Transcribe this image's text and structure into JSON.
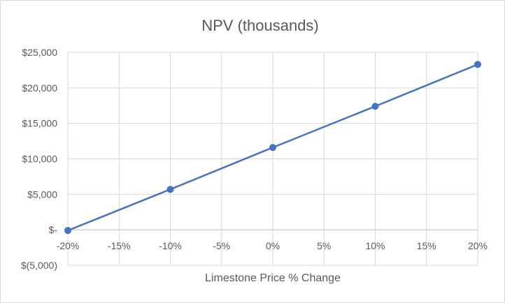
{
  "chart_data": {
    "type": "line",
    "title": "NPV (thousands)",
    "xlabel": "Limestone Price % Change",
    "ylabel": "",
    "x": [
      -20,
      -10,
      0,
      10,
      20
    ],
    "x_tick_labels": [
      "-20%",
      "-15%",
      "-10%",
      "-5%",
      "0%",
      "5%",
      "10%",
      "15%",
      "20%"
    ],
    "x_tick_values": [
      -20,
      -15,
      -10,
      -5,
      0,
      5,
      10,
      15,
      20
    ],
    "xlim": [
      -20,
      20
    ],
    "y_tick_labels": [
      "$25,000",
      "$20,000",
      "$15,000",
      "$10,000",
      "$5,000",
      "$-",
      "$(5,000)"
    ],
    "y_tick_values": [
      25000,
      20000,
      15000,
      10000,
      5000,
      0,
      -5000
    ],
    "ylim": [
      -5000,
      25000
    ],
    "grid": true,
    "series": [
      {
        "values": [
          -100,
          5700,
          11600,
          17400,
          23300
        ],
        "color": "#4472c4"
      }
    ]
  }
}
